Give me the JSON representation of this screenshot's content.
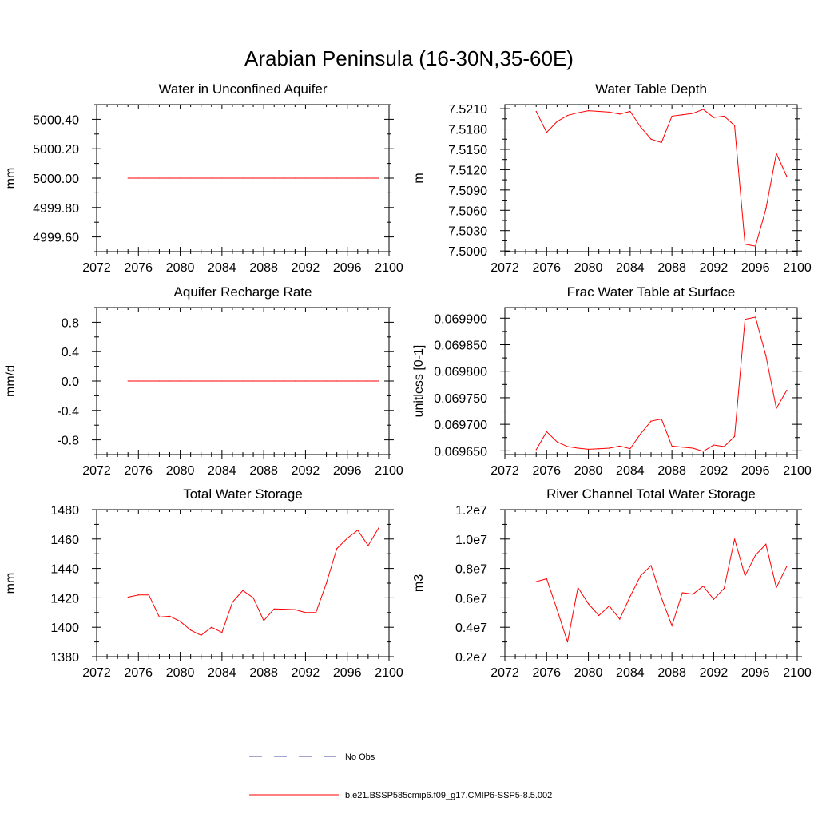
{
  "figure": {
    "title": "Arabian Peninsula (16-30N,35-60E)"
  },
  "colors": {
    "model": "#ff0000",
    "obs": "#4a4aa0",
    "axis": "#000000"
  },
  "legend": {
    "items": [
      {
        "label": "No Obs",
        "style": "dashed",
        "color": "#4a4aa0"
      },
      {
        "label": "b.e21.BSSP585cmip6.f09_g17.CMIP6-SSP5-8.5.002",
        "style": "solid",
        "color": "#ff0000"
      }
    ]
  },
  "chart_data": [
    {
      "type": "line",
      "title": "Water in Unconfined Aquifer",
      "xlabel": "",
      "ylabel": "mm",
      "xlim": [
        2072,
        2100
      ],
      "ylim": [
        4999.5,
        5000.5
      ],
      "xticks": [
        "2072",
        "2076",
        "2080",
        "2084",
        "2088",
        "2092",
        "2096",
        "2100"
      ],
      "xtick_values": [
        2072,
        2076,
        2080,
        2084,
        2088,
        2092,
        2096,
        2100
      ],
      "yticks": [
        "4999.60",
        "4999.80",
        "5000.00",
        "5000.20",
        "5000.40"
      ],
      "ytick_values": [
        4999.6,
        4999.8,
        5000.0,
        5000.2,
        5000.4
      ],
      "x": [
        2075,
        2076,
        2077,
        2078,
        2079,
        2080,
        2081,
        2082,
        2083,
        2084,
        2085,
        2086,
        2087,
        2088,
        2089,
        2090,
        2091,
        2092,
        2093,
        2094,
        2095,
        2096,
        2097,
        2098,
        2099
      ],
      "series": [
        {
          "values": [
            5000,
            5000,
            5000,
            5000,
            5000,
            5000,
            5000,
            5000,
            5000,
            5000,
            5000,
            5000,
            5000,
            5000,
            5000,
            5000,
            5000,
            5000,
            5000,
            5000,
            5000,
            5000,
            5000,
            5000,
            5000
          ]
        }
      ],
      "grid": false
    },
    {
      "type": "line",
      "title": "Water Table Depth",
      "xlabel": "",
      "ylabel": "m",
      "xlim": [
        2072,
        2100
      ],
      "ylim": [
        7.4999,
        7.5216
      ],
      "xticks": [
        "2072",
        "2076",
        "2080",
        "2084",
        "2088",
        "2092",
        "2096",
        "2100"
      ],
      "xtick_values": [
        2072,
        2076,
        2080,
        2084,
        2088,
        2092,
        2096,
        2100
      ],
      "yticks": [
        "7.5000",
        "7.5030",
        "7.5060",
        "7.5090",
        "7.5120",
        "7.5150",
        "7.5180",
        "7.5210"
      ],
      "ytick_values": [
        7.5,
        7.503,
        7.506,
        7.509,
        7.512,
        7.515,
        7.518,
        7.521
      ],
      "x": [
        2075,
        2076,
        2077,
        2078,
        2079,
        2080,
        2081,
        2082,
        2083,
        2084,
        2085,
        2086,
        2087,
        2088,
        2089,
        2090,
        2091,
        2092,
        2093,
        2094,
        2095,
        2096,
        2097,
        2098,
        2099
      ],
      "series": [
        {
          "values": [
            7.5206,
            7.5175,
            7.5191,
            7.52,
            7.5204,
            7.5207,
            7.5206,
            7.5205,
            7.5202,
            7.5206,
            7.5183,
            7.5165,
            7.516,
            7.5199,
            7.5201,
            7.5203,
            7.5209,
            7.5197,
            7.5199,
            7.5185,
            7.501,
            7.5007,
            7.5062,
            7.5144,
            7.511
          ]
        }
      ],
      "grid": false
    },
    {
      "type": "line",
      "title": "Aquifer Recharge Rate",
      "xlabel": "",
      "ylabel": "mm/d",
      "xlim": [
        2072,
        2100
      ],
      "ylim": [
        -1.0,
        1.0
      ],
      "xticks": [
        "2072",
        "2076",
        "2080",
        "2084",
        "2088",
        "2092",
        "2096",
        "2100"
      ],
      "xtick_values": [
        2072,
        2076,
        2080,
        2084,
        2088,
        2092,
        2096,
        2100
      ],
      "yticks": [
        "-0.8",
        "-0.4",
        "0.0",
        "0.4",
        "0.8"
      ],
      "ytick_values": [
        -0.8,
        -0.4,
        0.0,
        0.4,
        0.8
      ],
      "x": [
        2075,
        2076,
        2077,
        2078,
        2079,
        2080,
        2081,
        2082,
        2083,
        2084,
        2085,
        2086,
        2087,
        2088,
        2089,
        2090,
        2091,
        2092,
        2093,
        2094,
        2095,
        2096,
        2097,
        2098,
        2099
      ],
      "series": [
        {
          "values": [
            0,
            0,
            0,
            0,
            0,
            0,
            0,
            0,
            0,
            0,
            0,
            0,
            0,
            0,
            0,
            0,
            0,
            0,
            0,
            0,
            0,
            0,
            0,
            0,
            0
          ]
        }
      ],
      "grid": false
    },
    {
      "type": "line",
      "title": "Frac Water Table at Surface",
      "xlabel": "",
      "ylabel": "unitless [0-1]",
      "xlim": [
        2072,
        2100
      ],
      "ylim": [
        0.069643,
        0.06992
      ],
      "xticks": [
        "2072",
        "2076",
        "2080",
        "2084",
        "2088",
        "2092",
        "2096",
        "2100"
      ],
      "xtick_values": [
        2072,
        2076,
        2080,
        2084,
        2088,
        2092,
        2096,
        2100
      ],
      "yticks": [
        "0.069650",
        "0.069700",
        "0.069750",
        "0.069800",
        "0.069850",
        "0.069900"
      ],
      "ytick_values": [
        0.06965,
        0.0697,
        0.06975,
        0.0698,
        0.06985,
        0.0699
      ],
      "x": [
        2075,
        2076,
        2077,
        2078,
        2079,
        2080,
        2081,
        2082,
        2083,
        2084,
        2085,
        2086,
        2087,
        2088,
        2089,
        2090,
        2091,
        2092,
        2093,
        2094,
        2095,
        2096,
        2097,
        2098,
        2099
      ],
      "series": [
        {
          "values": [
            0.069652,
            0.069686,
            0.069667,
            0.069658,
            0.069655,
            0.069653,
            0.069654,
            0.069655,
            0.069659,
            0.069654,
            0.069682,
            0.069706,
            0.06971,
            0.069659,
            0.069657,
            0.069655,
            0.069649,
            0.069661,
            0.069658,
            0.069677,
            0.069898,
            0.069902,
            0.069829,
            0.06973,
            0.069764
          ]
        }
      ],
      "grid": false
    },
    {
      "type": "line",
      "title": "Total Water Storage",
      "xlabel": "",
      "ylabel": "mm",
      "xlim": [
        2072,
        2100
      ],
      "ylim": [
        1380,
        1480
      ],
      "xticks": [
        "2072",
        "2076",
        "2080",
        "2084",
        "2088",
        "2092",
        "2096",
        "2100"
      ],
      "xtick_values": [
        2072,
        2076,
        2080,
        2084,
        2088,
        2092,
        2096,
        2100
      ],
      "yticks": [
        "1380",
        "1400",
        "1420",
        "1440",
        "1460",
        "1480"
      ],
      "ytick_values": [
        1380,
        1400,
        1420,
        1440,
        1460,
        1480
      ],
      "x": [
        2075,
        2076,
        2077,
        2078,
        2079,
        2080,
        2081,
        2082,
        2083,
        2084,
        2085,
        2086,
        2087,
        2088,
        2089,
        2090,
        2091,
        2092,
        2093,
        2094,
        2095,
        2096,
        2097,
        2098,
        2099
      ],
      "series": [
        {
          "values": [
            1420.5,
            1422,
            1422,
            1407,
            1407.5,
            1404,
            1398,
            1394.5,
            1400,
            1396.5,
            1417,
            1425,
            1420,
            1404.5,
            1412.5,
            1412.3,
            1412,
            1410,
            1410,
            1430,
            1453.5,
            1460.5,
            1466,
            1455.5,
            1467.5
          ]
        }
      ],
      "grid": false
    },
    {
      "type": "line",
      "title": "River Channel Total Water Storage",
      "xlabel": "",
      "ylabel": "m3",
      "xlim": [
        2072,
        2100
      ],
      "ylim": [
        2000000,
        12000000
      ],
      "xticks": [
        "2072",
        "2076",
        "2080",
        "2084",
        "2088",
        "2092",
        "2096",
        "2100"
      ],
      "xtick_values": [
        2072,
        2076,
        2080,
        2084,
        2088,
        2092,
        2096,
        2100
      ],
      "yticks": [
        "0.2e7",
        "0.4e7",
        "0.6e7",
        "0.8e7",
        "1.0e7",
        "1.2e7"
      ],
      "ytick_values": [
        2000000,
        4000000,
        6000000,
        8000000,
        10000000,
        12000000
      ],
      "x": [
        2075,
        2076,
        2077,
        2078,
        2079,
        2080,
        2081,
        2082,
        2083,
        2084,
        2085,
        2086,
        2087,
        2088,
        2089,
        2090,
        2091,
        2092,
        2093,
        2094,
        2095,
        2096,
        2097,
        2098,
        2099
      ],
      "series": [
        {
          "values": [
            7100000,
            7300000,
            5200000,
            3000000,
            6700000,
            5600000,
            4800000,
            5450000,
            4550000,
            6100000,
            7500000,
            8200000,
            6000000,
            4100000,
            6350000,
            6250000,
            6800000,
            5900000,
            6650000,
            10000000,
            7500000,
            8900000,
            9650000,
            6700000,
            8150000
          ]
        }
      ],
      "grid": false
    }
  ]
}
